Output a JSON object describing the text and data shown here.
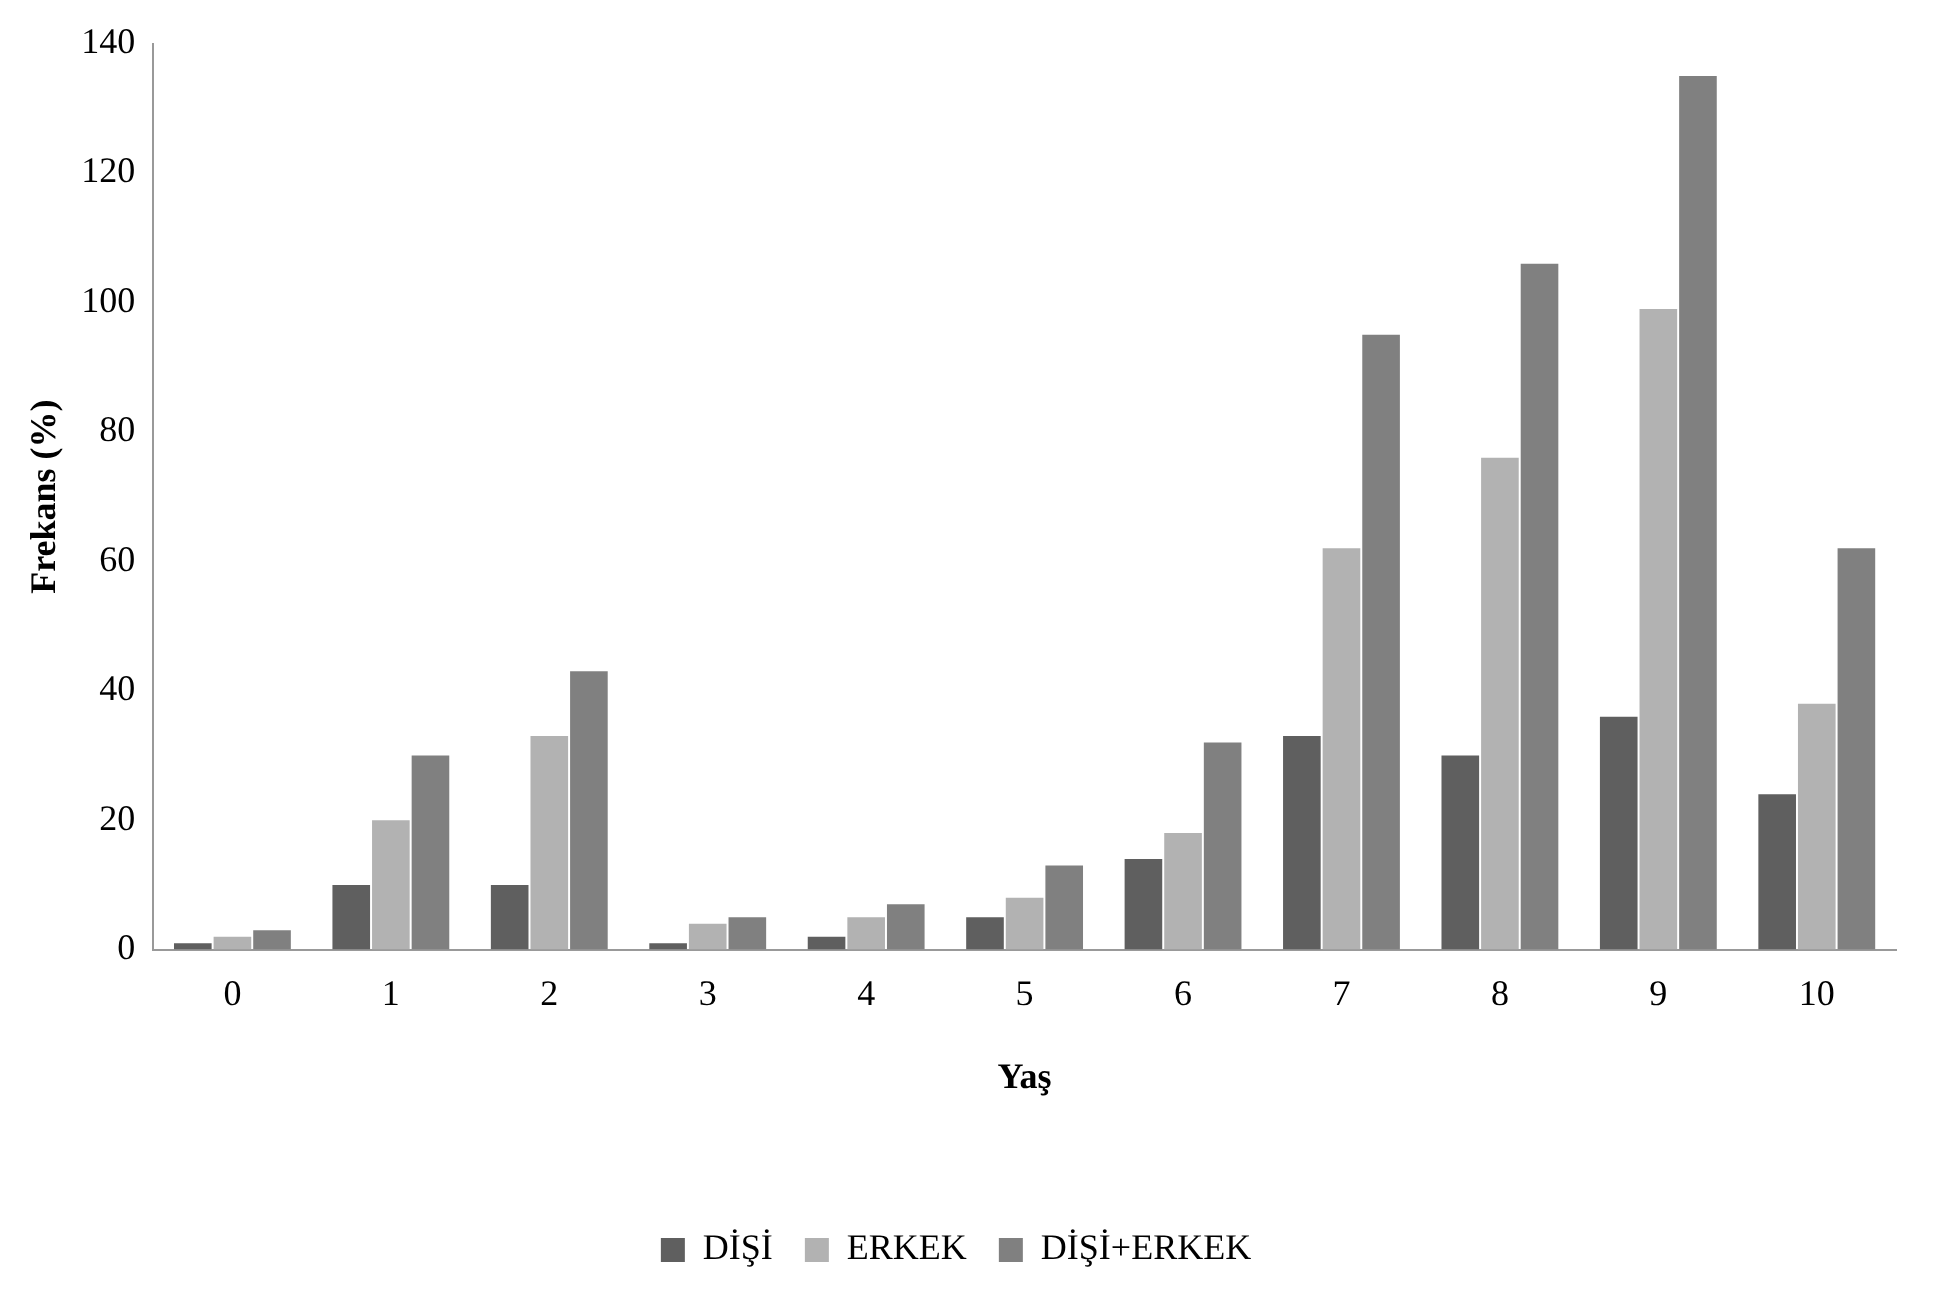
{
  "chart_data": {
    "type": "bar",
    "xlabel": "Yaş",
    "ylabel": "Frekans (%)",
    "categories": [
      "0",
      "1",
      "2",
      "3",
      "4",
      "5",
      "6",
      "7",
      "8",
      "9",
      "10"
    ],
    "series": [
      {
        "name": "DİŞİ",
        "color": "#5f5f5f",
        "values": [
          1,
          10,
          10,
          1,
          2,
          5,
          14,
          33,
          30,
          36,
          24
        ]
      },
      {
        "name": "ERKEK",
        "color": "#b2b2b2",
        "values": [
          2,
          20,
          33,
          4,
          5,
          8,
          18,
          62,
          76,
          99,
          38
        ]
      },
      {
        "name": "DİŞİ+ERKEK",
        "color": "#808080",
        "values": [
          3,
          30,
          43,
          5,
          7,
          13,
          32,
          95,
          106,
          135,
          62
        ]
      }
    ],
    "ylim": [
      0,
      140
    ],
    "yticks": [
      0,
      20,
      40,
      60,
      80,
      100,
      120,
      140
    ],
    "grid": false,
    "legend": "bottom"
  }
}
